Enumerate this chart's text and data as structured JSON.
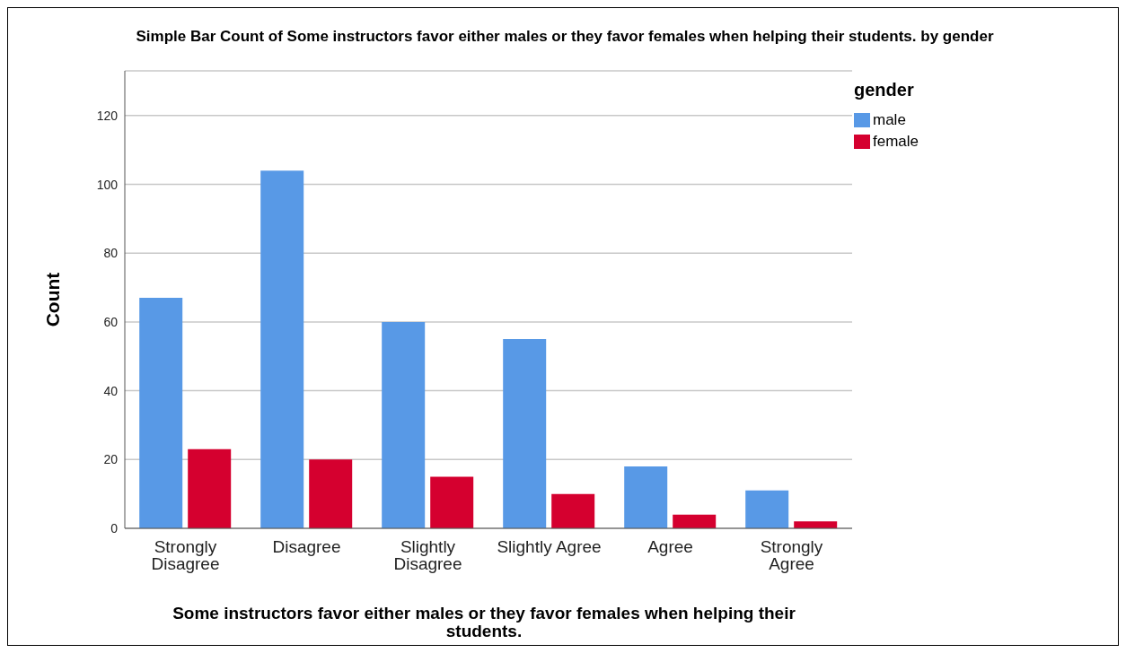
{
  "chart_data": {
    "type": "bar",
    "title": "Simple Bar Count of Some instructors favor either males or they favor females when helping their students. by gender",
    "xlabel": "Some instructors favor either males or they favor females when helping their students.",
    "ylabel": "Count",
    "legend_title": "gender",
    "categories": [
      "Strongly Disagree",
      "Disagree",
      "Slightly Disagree",
      "Slightly Agree",
      "Agree",
      "Strongly Agree"
    ],
    "series": [
      {
        "name": "male",
        "color": "#5899e6",
        "values": [
          67,
          104,
          60,
          55,
          18,
          11
        ]
      },
      {
        "name": "female",
        "color": "#d5002f",
        "values": [
          23,
          20,
          15,
          10,
          4,
          2
        ]
      }
    ],
    "ylim": [
      0,
      133
    ],
    "yticks": [
      0,
      20,
      40,
      60,
      80,
      100,
      120
    ],
    "grid": "y",
    "legend": "top right"
  }
}
